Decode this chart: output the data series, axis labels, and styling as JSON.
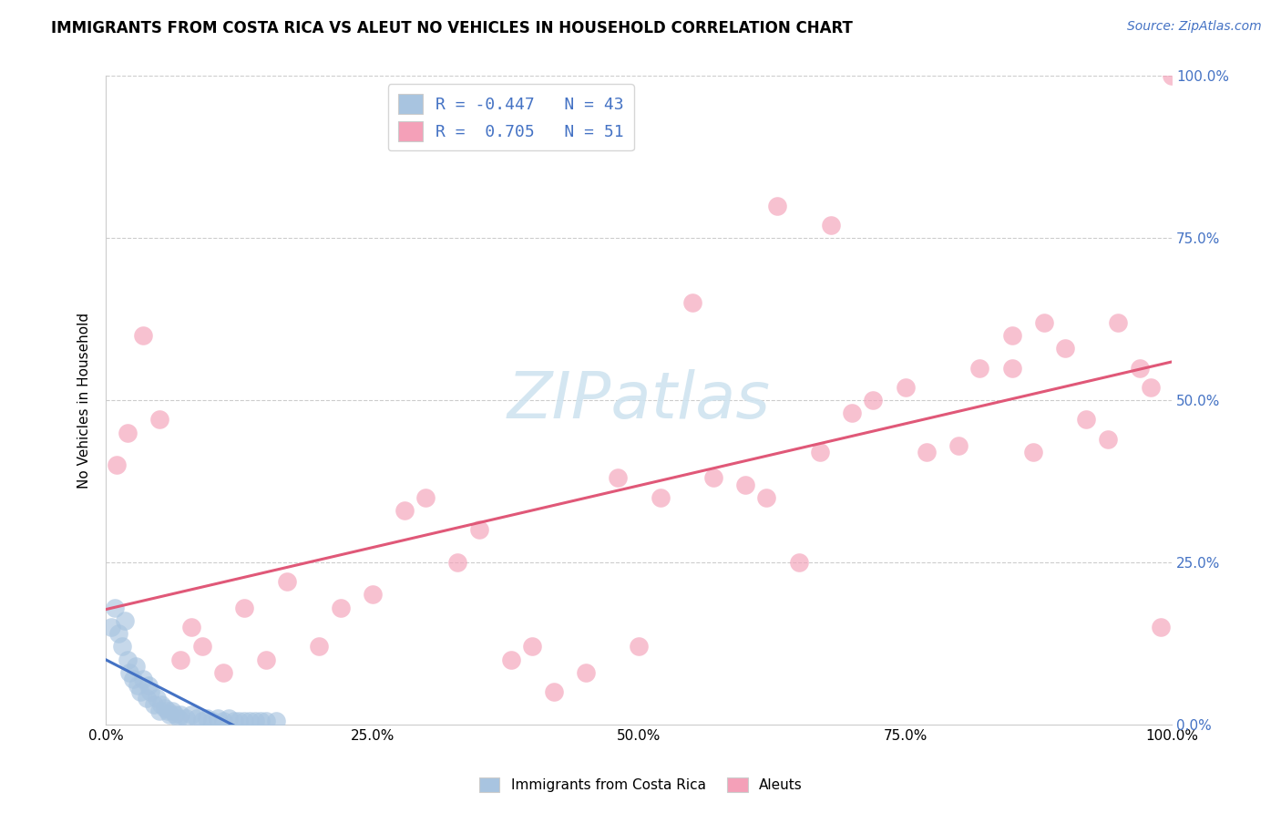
{
  "title": "IMMIGRANTS FROM COSTA RICA VS ALEUT NO VEHICLES IN HOUSEHOLD CORRELATION CHART",
  "source": "Source: ZipAtlas.com",
  "ylabel": "No Vehicles in Household",
  "r_blue": -0.447,
  "n_blue": 43,
  "r_pink": 0.705,
  "n_pink": 51,
  "blue_color": "#a8c4e0",
  "pink_color": "#f4a0b8",
  "blue_line_color": "#4472c4",
  "pink_line_color": "#e05878",
  "watermark_color": "#d0e4f0",
  "blue_scatter_x": [
    0.5,
    0.8,
    1.2,
    1.5,
    1.8,
    2.0,
    2.2,
    2.5,
    2.8,
    3.0,
    3.2,
    3.5,
    3.8,
    4.0,
    4.2,
    4.5,
    4.8,
    5.0,
    5.2,
    5.5,
    5.8,
    6.0,
    6.2,
    6.5,
    6.8,
    7.0,
    7.5,
    8.0,
    8.5,
    9.0,
    9.5,
    10.0,
    10.5,
    11.0,
    11.5,
    12.0,
    12.5,
    13.0,
    13.5,
    14.0,
    14.5,
    15.0,
    16.0
  ],
  "blue_scatter_y": [
    15.0,
    18.0,
    14.0,
    12.0,
    16.0,
    10.0,
    8.0,
    7.0,
    9.0,
    6.0,
    5.0,
    7.0,
    4.0,
    6.0,
    5.0,
    3.0,
    4.0,
    2.0,
    3.0,
    2.5,
    2.0,
    1.5,
    2.0,
    1.5,
    1.0,
    1.5,
    1.0,
    1.5,
    1.0,
    0.5,
    1.0,
    0.5,
    1.0,
    0.5,
    1.0,
    0.5,
    0.5,
    0.5,
    0.5,
    0.5,
    0.5,
    0.5,
    0.5
  ],
  "pink_scatter_x": [
    1.0,
    2.0,
    3.5,
    5.0,
    7.0,
    8.0,
    9.0,
    11.0,
    13.0,
    15.0,
    17.0,
    20.0,
    22.0,
    25.0,
    28.0,
    30.0,
    33.0,
    35.0,
    38.0,
    40.0,
    42.0,
    45.0,
    48.0,
    50.0,
    52.0,
    55.0,
    57.0,
    60.0,
    62.0,
    65.0,
    67.0,
    70.0,
    72.0,
    75.0,
    77.0,
    80.0,
    82.0,
    85.0,
    87.0,
    90.0,
    92.0,
    94.0,
    95.0,
    97.0,
    98.0,
    99.0,
    100.0,
    63.0,
    68.0,
    85.0,
    88.0
  ],
  "pink_scatter_y": [
    40.0,
    45.0,
    60.0,
    47.0,
    10.0,
    15.0,
    12.0,
    8.0,
    18.0,
    10.0,
    22.0,
    12.0,
    18.0,
    20.0,
    33.0,
    35.0,
    25.0,
    30.0,
    10.0,
    12.0,
    5.0,
    8.0,
    38.0,
    12.0,
    35.0,
    65.0,
    38.0,
    37.0,
    35.0,
    25.0,
    42.0,
    48.0,
    50.0,
    52.0,
    42.0,
    43.0,
    55.0,
    55.0,
    42.0,
    58.0,
    47.0,
    44.0,
    62.0,
    55.0,
    52.0,
    15.0,
    100.0,
    80.0,
    77.0,
    60.0,
    62.0
  ]
}
